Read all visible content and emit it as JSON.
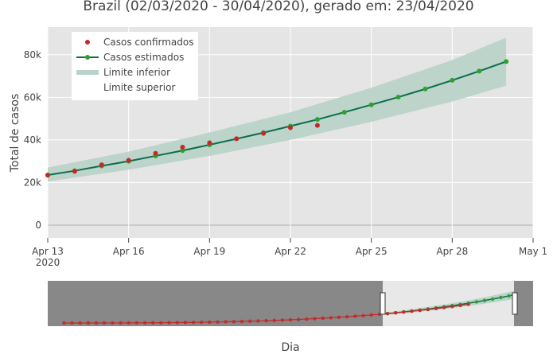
{
  "colors": {
    "plot_bg": "#e5e5e5",
    "grid": "#ffffff",
    "confirmed": "#c62828",
    "estimated_line": "#0b6e4f",
    "estimated_marker": "#2ea02e",
    "band": "#b9d3c8",
    "rangeslider_mask": "#888888",
    "rangeslider_bg": "#e8e8e8"
  },
  "chart_data": {
    "type": "line",
    "title": "Brazil (02/03/2020 - 30/04/2020), gerado em: 23/04/2020",
    "xlabel": "Dia",
    "ylabel": "Total de casos",
    "x_ticks": [
      "Apr 13\n2020",
      "Apr 16",
      "Apr 19",
      "Apr 22",
      "Apr 25",
      "Apr 28",
      "May 1"
    ],
    "y_ticks": [
      "0",
      "20k",
      "40k",
      "60k",
      "80k"
    ],
    "ylim": [
      -6000,
      93000
    ],
    "xlim": [
      "2020-04-13",
      "2020-05-01"
    ],
    "grid": true,
    "legend_position": "top-left",
    "legend": [
      "Casos confirmados",
      "Casos estimados",
      "Limite inferior",
      "Limite superior"
    ],
    "series": [
      {
        "name": "Casos confirmados",
        "mode": "markers",
        "x": [
          "2020-04-13",
          "2020-04-14",
          "2020-04-15",
          "2020-04-16",
          "2020-04-17",
          "2020-04-18",
          "2020-04-19",
          "2020-04-20",
          "2020-04-21",
          "2020-04-22",
          "2020-04-23"
        ],
        "values": [
          23430,
          25262,
          28320,
          30425,
          33682,
          36599,
          38654,
          40581,
          43079,
          45757,
          46800
        ]
      },
      {
        "name": "Casos estimados",
        "mode": "lines+markers",
        "x": [
          "2020-04-13",
          "2020-04-14",
          "2020-04-15",
          "2020-04-16",
          "2020-04-17",
          "2020-04-18",
          "2020-04-19",
          "2020-04-20",
          "2020-04-21",
          "2020-04-22",
          "2020-04-23",
          "2020-04-24",
          "2020-04-25",
          "2020-04-26",
          "2020-04-27",
          "2020-04-28",
          "2020-04-29",
          "2020-04-30"
        ],
        "values": [
          23500,
          25500,
          27800,
          30000,
          32500,
          35000,
          37700,
          40500,
          43400,
          46500,
          49600,
          53000,
          56500,
          60100,
          63900,
          68000,
          72300,
          76800
        ]
      },
      {
        "name": "Limite inferior",
        "x": [
          "2020-04-13",
          "2020-04-16",
          "2020-04-19",
          "2020-04-22",
          "2020-04-25",
          "2020-04-28",
          "2020-04-30"
        ],
        "values": [
          20500,
          26000,
          32500,
          40000,
          48500,
          58000,
          65500
        ]
      },
      {
        "name": "Limite superior",
        "x": [
          "2020-04-13",
          "2020-04-16",
          "2020-04-19",
          "2020-04-22",
          "2020-04-25",
          "2020-04-28",
          "2020-04-30"
        ],
        "values": [
          27000,
          34500,
          43500,
          53000,
          64500,
          77500,
          88000
        ]
      }
    ],
    "rangeslider": {
      "xlim": [
        "2020-03-02",
        "2020-04-30"
      ],
      "selected": [
        "2020-04-13",
        "2020-05-01"
      ]
    }
  }
}
